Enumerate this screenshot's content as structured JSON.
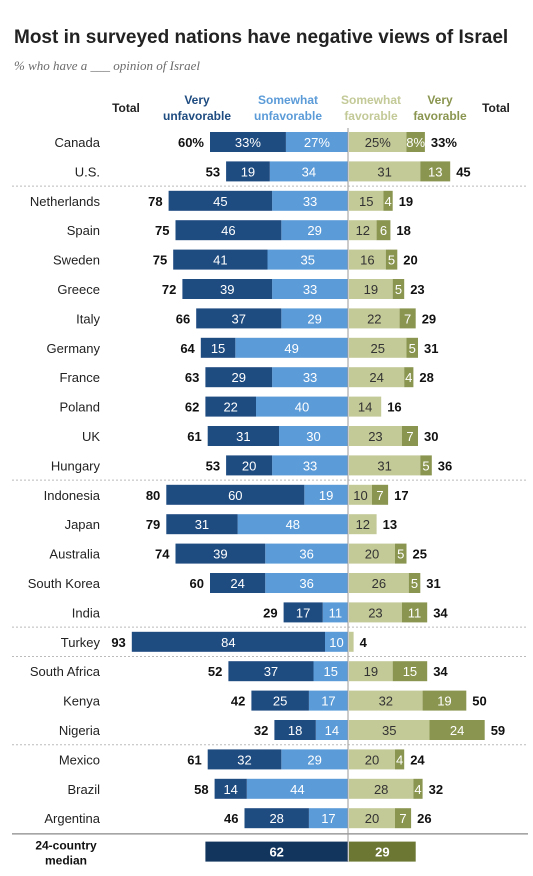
{
  "chart_data": {
    "type": "bar",
    "title": "Most in surveyed nations have negative views of Israel",
    "subtitle": "% who have a ___ opinion of Israel",
    "headers": {
      "total_left": "Total",
      "very_unfav": [
        "Very",
        "unfavorable"
      ],
      "somewhat_unfav": [
        "Somewhat",
        "unfavorable"
      ],
      "somewhat_fav": [
        "Somewhat",
        "favorable"
      ],
      "very_fav": [
        "Very",
        "favorable"
      ],
      "total_right": "Total"
    },
    "colors": {
      "very_unfav": "#1e4b80",
      "somewhat_unfav": "#5b9bd8",
      "somewhat_fav": "#c3c997",
      "very_fav": "#8a9650",
      "median_unfav": "#12355e",
      "median_fav": "#6b7733",
      "title": "#222222"
    },
    "rows": [
      {
        "country": "Canada",
        "very_unfav": 33,
        "somewhat_unfav": 27,
        "somewhat_fav": 25,
        "very_fav": 8,
        "unfav_total": 60,
        "fav_total": 33,
        "pct": true,
        "group": 0
      },
      {
        "country": "U.S.",
        "very_unfav": 19,
        "somewhat_unfav": 34,
        "somewhat_fav": 31,
        "very_fav": 13,
        "unfav_total": 53,
        "fav_total": 45,
        "group": 0
      },
      {
        "country": "Netherlands",
        "very_unfav": 45,
        "somewhat_unfav": 33,
        "somewhat_fav": 15,
        "very_fav": 4,
        "unfav_total": 78,
        "fav_total": 19,
        "group": 1
      },
      {
        "country": "Spain",
        "very_unfav": 46,
        "somewhat_unfav": 29,
        "somewhat_fav": 12,
        "very_fav": 6,
        "unfav_total": 75,
        "fav_total": 18,
        "group": 1
      },
      {
        "country": "Sweden",
        "very_unfav": 41,
        "somewhat_unfav": 35,
        "somewhat_fav": 16,
        "very_fav": 5,
        "unfav_total": 75,
        "fav_total": 20,
        "group": 1
      },
      {
        "country": "Greece",
        "very_unfav": 39,
        "somewhat_unfav": 33,
        "somewhat_fav": 19,
        "very_fav": 5,
        "unfav_total": 72,
        "fav_total": 23,
        "group": 1
      },
      {
        "country": "Italy",
        "very_unfav": 37,
        "somewhat_unfav": 29,
        "somewhat_fav": 22,
        "very_fav": 7,
        "unfav_total": 66,
        "fav_total": 29,
        "group": 1
      },
      {
        "country": "Germany",
        "very_unfav": 15,
        "somewhat_unfav": 49,
        "somewhat_fav": 25,
        "very_fav": 5,
        "unfav_total": 64,
        "fav_total": 31,
        "group": 1
      },
      {
        "country": "France",
        "very_unfav": 29,
        "somewhat_unfav": 33,
        "somewhat_fav": 24,
        "very_fav": 4,
        "unfav_total": 63,
        "fav_total": 28,
        "group": 1
      },
      {
        "country": "Poland",
        "very_unfav": 22,
        "somewhat_unfav": 40,
        "somewhat_fav": 14,
        "very_fav": null,
        "unfav_total": 62,
        "fav_total": 16,
        "group": 1
      },
      {
        "country": "UK",
        "very_unfav": 31,
        "somewhat_unfav": 30,
        "somewhat_fav": 23,
        "very_fav": 7,
        "unfav_total": 61,
        "fav_total": 30,
        "group": 1
      },
      {
        "country": "Hungary",
        "very_unfav": 20,
        "somewhat_unfav": 33,
        "somewhat_fav": 31,
        "very_fav": 5,
        "unfav_total": 53,
        "fav_total": 36,
        "group": 1
      },
      {
        "country": "Indonesia",
        "very_unfav": 60,
        "somewhat_unfav": 19,
        "somewhat_fav": 10,
        "very_fav": 7,
        "unfav_total": 80,
        "fav_total": 17,
        "group": 2
      },
      {
        "country": "Japan",
        "very_unfav": 31,
        "somewhat_unfav": 48,
        "somewhat_fav": 12,
        "very_fav": null,
        "unfav_total": 79,
        "fav_total": 13,
        "group": 2
      },
      {
        "country": "Australia",
        "very_unfav": 39,
        "somewhat_unfav": 36,
        "somewhat_fav": 20,
        "very_fav": 5,
        "unfav_total": 74,
        "fav_total": 25,
        "group": 2
      },
      {
        "country": "South Korea",
        "very_unfav": 24,
        "somewhat_unfav": 36,
        "somewhat_fav": 26,
        "very_fav": 5,
        "unfav_total": 60,
        "fav_total": 31,
        "group": 2
      },
      {
        "country": "India",
        "very_unfav": 17,
        "somewhat_unfav": 11,
        "somewhat_fav": 23,
        "very_fav": 11,
        "unfav_total": 29,
        "fav_total": 34,
        "group": 2
      },
      {
        "country": "Turkey",
        "very_unfav": 84,
        "somewhat_unfav": 10,
        "somewhat_fav": null,
        "very_fav": null,
        "unfav_total": 93,
        "fav_total": 4,
        "group": 3
      },
      {
        "country": "South Africa",
        "very_unfav": 37,
        "somewhat_unfav": 15,
        "somewhat_fav": 19,
        "very_fav": 15,
        "unfav_total": 52,
        "fav_total": 34,
        "group": 4
      },
      {
        "country": "Kenya",
        "very_unfav": 25,
        "somewhat_unfav": 17,
        "somewhat_fav": 32,
        "very_fav": 19,
        "unfav_total": 42,
        "fav_total": 50,
        "group": 4
      },
      {
        "country": "Nigeria",
        "very_unfav": 18,
        "somewhat_unfav": 14,
        "somewhat_fav": 35,
        "very_fav": 24,
        "unfav_total": 32,
        "fav_total": 59,
        "group": 4
      },
      {
        "country": "Mexico",
        "very_unfav": 32,
        "somewhat_unfav": 29,
        "somewhat_fav": 20,
        "very_fav": 4,
        "unfav_total": 61,
        "fav_total": 24,
        "group": 5
      },
      {
        "country": "Brazil",
        "very_unfav": 14,
        "somewhat_unfav": 44,
        "somewhat_fav": 28,
        "very_fav": 4,
        "unfav_total": 58,
        "fav_total": 32,
        "group": 5
      },
      {
        "country": "Argentina",
        "very_unfav": 28,
        "somewhat_unfav": 17,
        "somewhat_fav": 20,
        "very_fav": 7,
        "unfav_total": 46,
        "fav_total": 26,
        "group": 5
      }
    ],
    "median": {
      "label": [
        "24-country",
        "median"
      ],
      "unfav": 62,
      "fav": 29
    }
  }
}
